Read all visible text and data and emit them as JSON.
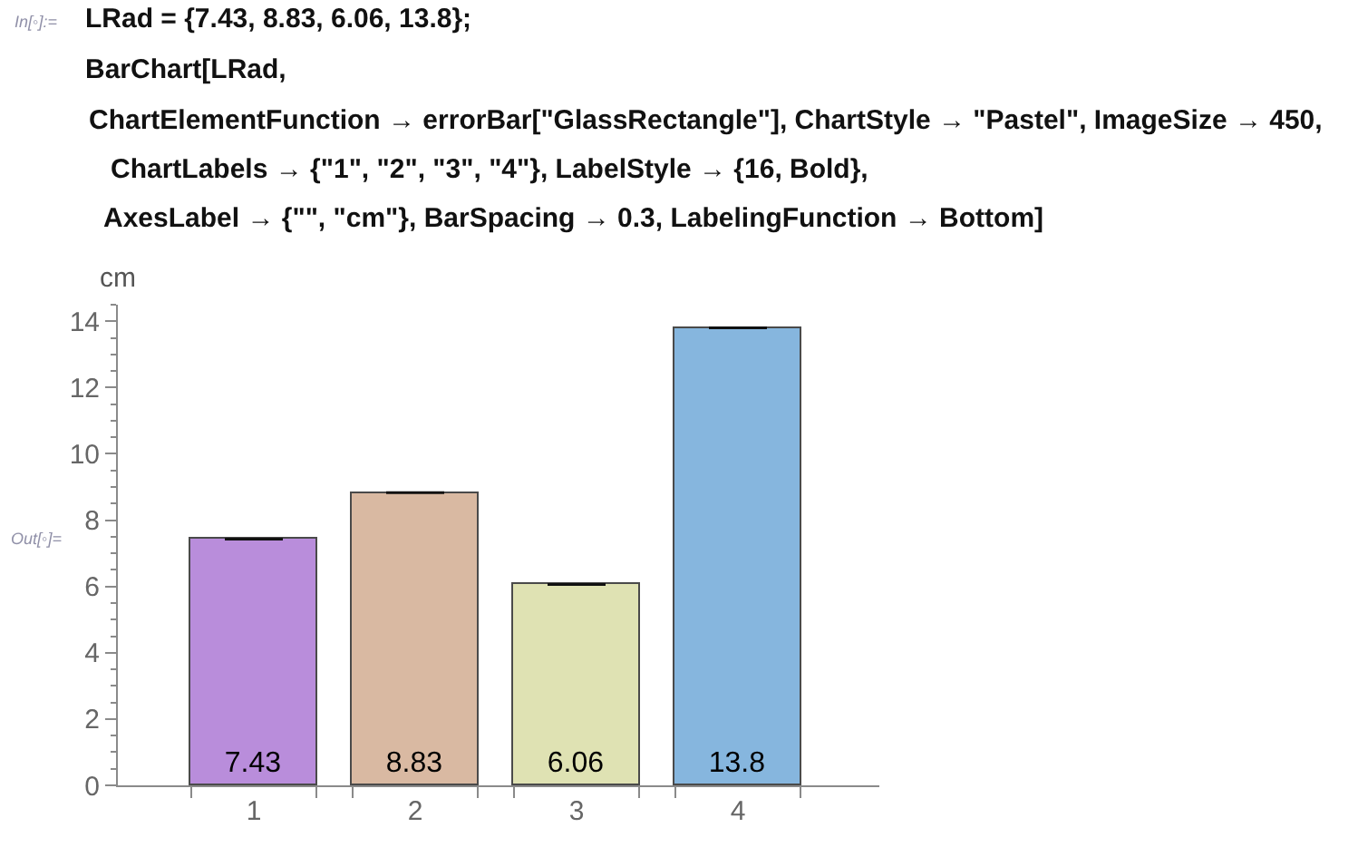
{
  "chart_data": {
    "type": "bar",
    "annotations": [
      "In[◦]:=",
      "LRad = {7.43, 8.83, 6.06, 13.8};",
      "BarChart[LRad,",
      "ChartElementFunction → errorBar[\"GlassRectangle\"], ChartStyle → \"Pastel\", ImageSize → 450,",
      "ChartLabels → {\"1\", \"2\", \"3\", \"4\"}, LabelStyle → {16, Bold},",
      "AxesLabel → {\"\", \"cm\"}, BarSpacing → 0.3, LabelingFunction → Bottom]",
      "Out[◦]="
    ],
    "ylabel": "cm",
    "categories": [
      "1",
      "2",
      "3",
      "4"
    ],
    "values": [
      7.43,
      8.83,
      6.06,
      13.8
    ],
    "colors": [
      "#b98ddb",
      "#d9b9a2",
      "#dfe2b3",
      "#86b6de"
    ],
    "errors": [
      0,
      0,
      0,
      0
    ],
    "data_labels": true,
    "ylim": [
      0,
      14.5
    ],
    "yticks": [
      0,
      {
        "value": 0.5,
        "label": null
      },
      {
        "value": 1,
        "label": null
      },
      {
        "value": 1.5,
        "label": null
      },
      2,
      {
        "value": 2.5,
        "label": null
      },
      {
        "value": 3,
        "label": null
      },
      {
        "value": 3.5,
        "label": null
      },
      4,
      {
        "value": 4.5,
        "label": null
      },
      {
        "value": 5,
        "label": null
      },
      {
        "value": 5.5,
        "label": null
      },
      6,
      {
        "value": 6.5,
        "label": null
      },
      {
        "value": 7,
        "label": null
      },
      {
        "value": 7.5,
        "label": null
      },
      8,
      {
        "value": 8.5,
        "label": null
      },
      {
        "value": 9,
        "label": null
      },
      {
        "value": 9.5,
        "label": null
      },
      10,
      {
        "value": 10.5,
        "label": null
      },
      {
        "value": 11,
        "label": null
      },
      {
        "value": 11.5,
        "label": null
      },
      12,
      {
        "value": 12.5,
        "label": null
      },
      {
        "value": 13,
        "label": null
      },
      {
        "value": 13.5,
        "label": null
      },
      14,
      {
        "value": 14.5,
        "label": null
      }
    ]
  }
}
